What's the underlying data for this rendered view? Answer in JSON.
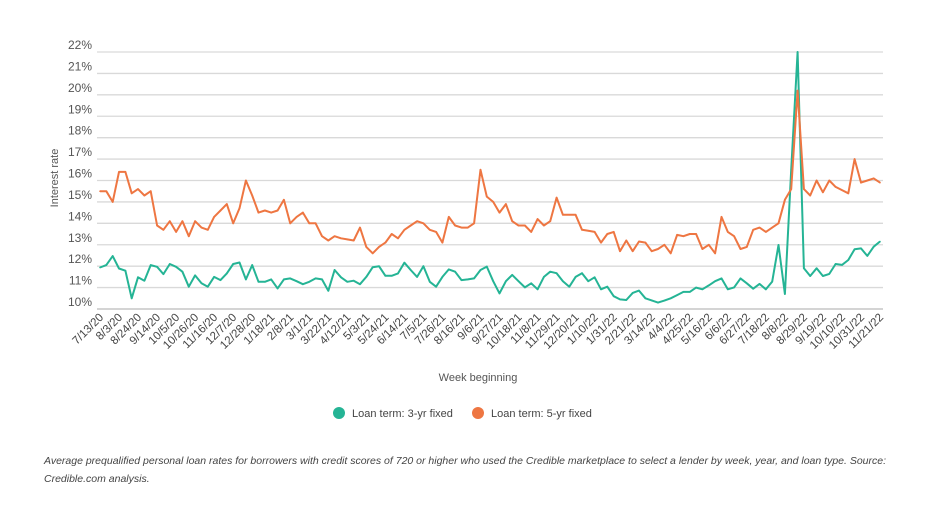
{
  "chart_data": {
    "type": "line",
    "xlabel": "Week beginning",
    "ylabel": "Interest rate",
    "ylim": [
      10,
      22
    ],
    "y_ticks": [
      "10%",
      "11%",
      "12%",
      "13%",
      "14%",
      "15%",
      "16%",
      "17%",
      "18%",
      "19%",
      "20%",
      "21%",
      "22%"
    ],
    "grid": true,
    "legend_position": "bottom",
    "x_tick_labels": [
      "7/13/20",
      "8/3/20",
      "8/24/20",
      "9/14/20",
      "10/5/20",
      "10/26/20",
      "11/16/20",
      "12/7/20",
      "12/28/20",
      "1/18/21",
      "2/8/21",
      "3/1/21",
      "3/22/21",
      "4/12/21",
      "5/3/21",
      "5/24/21",
      "6/14/21",
      "7/5/21",
      "7/26/21",
      "8/16/21",
      "9/6/21",
      "9/27/21",
      "10/18/21",
      "11/8/21",
      "11/29/21",
      "12/20/21",
      "1/10/22",
      "1/31/22",
      "2/21/22",
      "3/14/22",
      "4/4/22",
      "4/25/22",
      "5/16/22",
      "6/6/22",
      "6/27/22",
      "7/18/22",
      "8/8/22",
      "8/29/22",
      "9/19/22",
      "10/10/22",
      "10/31/22",
      "11/21/22"
    ],
    "x_frequency": "weekly",
    "series": [
      {
        "name": "Loan term: 3-yr fixed",
        "color": "#25b495",
        "values": [
          11.94,
          12.05,
          12.47,
          11.89,
          11.79,
          10.5,
          11.48,
          11.32,
          12.05,
          11.97,
          11.63,
          12.1,
          11.97,
          11.74,
          11.04,
          11.57,
          11.2,
          11.04,
          11.5,
          11.35,
          11.66,
          12.1,
          12.17,
          11.38,
          12.05,
          11.27,
          11.27,
          11.38,
          10.96,
          11.38,
          11.43,
          11.3,
          11.16,
          11.27,
          11.43,
          11.38,
          10.85,
          11.82,
          11.48,
          11.27,
          11.32,
          11.16,
          11.5,
          11.95,
          12.0,
          11.55,
          11.55,
          11.66,
          12.16,
          11.82,
          11.5,
          12.0,
          11.27,
          11.04,
          11.5,
          11.85,
          11.74,
          11.35,
          11.38,
          11.43,
          11.82,
          11.98,
          11.3,
          10.73,
          11.3,
          11.59,
          11.3,
          11.01,
          11.2,
          10.92,
          11.5,
          11.74,
          11.67,
          11.3,
          11.04,
          11.5,
          11.67,
          11.3,
          11.48,
          10.92,
          11.04,
          10.6,
          10.45,
          10.42,
          10.75,
          10.86,
          10.5,
          10.4,
          10.3,
          10.39,
          10.5,
          10.65,
          10.8,
          10.8,
          11.0,
          10.92,
          11.1,
          11.3,
          11.43,
          10.92,
          11.01,
          11.43,
          11.2,
          10.95,
          11.17,
          10.92,
          11.28,
          12.99,
          10.7,
          16.5,
          22.0,
          11.9,
          11.54,
          11.9,
          11.54,
          11.64,
          12.1,
          12.06,
          12.29,
          12.79,
          12.83,
          12.48,
          12.91,
          13.15
        ]
      },
      {
        "name": "Loan term: 5-yr fixed",
        "color": "#ee7642",
        "values": [
          15.5,
          15.5,
          15.0,
          16.4,
          16.4,
          15.4,
          15.6,
          15.3,
          15.5,
          13.9,
          13.7,
          14.1,
          13.6,
          14.1,
          13.4,
          14.1,
          13.8,
          13.7,
          14.3,
          14.6,
          14.9,
          14.0,
          14.7,
          16.0,
          15.3,
          14.5,
          14.6,
          14.5,
          14.6,
          15.1,
          14.0,
          14.3,
          14.5,
          14.0,
          14.0,
          13.4,
          13.2,
          13.4,
          13.3,
          13.25,
          13.2,
          13.8,
          12.9,
          12.6,
          12.9,
          13.1,
          13.5,
          13.3,
          13.7,
          13.9,
          14.1,
          14.0,
          13.7,
          13.6,
          13.1,
          14.3,
          13.9,
          13.8,
          13.8,
          14.0,
          16.5,
          15.25,
          15.0,
          14.5,
          14.9,
          14.1,
          13.9,
          13.9,
          13.6,
          14.2,
          13.9,
          14.1,
          15.2,
          14.4,
          14.4,
          14.4,
          13.7,
          13.65,
          13.6,
          13.1,
          13.5,
          13.6,
          12.7,
          13.2,
          12.7,
          13.15,
          13.1,
          12.7,
          12.8,
          13.0,
          12.6,
          13.46,
          13.4,
          13.5,
          13.5,
          12.8,
          13.0,
          12.6,
          14.3,
          13.6,
          13.4,
          12.8,
          12.9,
          13.7,
          13.8,
          13.6,
          13.8,
          14.0,
          15.1,
          15.6,
          20.2,
          15.6,
          15.3,
          16.0,
          15.45,
          16.0,
          15.7,
          15.55,
          15.4,
          17.0,
          15.9,
          16.0,
          16.1,
          15.9
        ]
      }
    ]
  },
  "caption": "Average prequalified personal loan rates for borrowers with credit scores of 720 or higher who used the Credible marketplace to select a lender by week, year, and loan type. Source: Credible.com analysis."
}
